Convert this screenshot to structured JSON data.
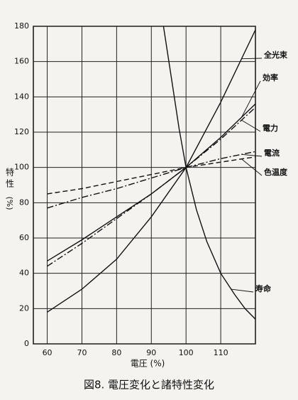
{
  "chart_data": {
    "type": "line",
    "title": "図8. 電圧変化と諸特性変化",
    "xlabel": "電圧 (%)",
    "ylabel": "特性",
    "yunit": "(%)",
    "xlim": [
      56,
      120
    ],
    "ylim": [
      0,
      180
    ],
    "xticks": [
      60,
      70,
      80,
      90,
      100,
      110
    ],
    "yticks": [
      0,
      20,
      40,
      60,
      80,
      100,
      120,
      140,
      160,
      180
    ],
    "grid": true,
    "series": [
      {
        "name": "全光束",
        "color": "#111111",
        "style": "solid",
        "x": [
          60,
          70,
          80,
          90,
          100,
          110,
          120
        ],
        "values": [
          18,
          31,
          48,
          72,
          100,
          137,
          178
        ]
      },
      {
        "name": "効率",
        "color": "#111111",
        "style": "solid",
        "x": [
          60,
          70,
          80,
          90,
          100,
          110,
          120
        ],
        "values": [
          47,
          59,
          72,
          85,
          100,
          117,
          136
        ]
      },
      {
        "name": "電力",
        "color": "#111111",
        "style": "dashdot",
        "x": [
          60,
          70,
          80,
          90,
          100,
          110,
          120
        ],
        "values": [
          44,
          57,
          71,
          85,
          100,
          116,
          134
        ]
      },
      {
        "name": "電流",
        "color": "#111111",
        "style": "dashdot",
        "x": [
          60,
          70,
          80,
          90,
          100,
          110,
          120
        ],
        "values": [
          77,
          83,
          88,
          94,
          100,
          105,
          109
        ]
      },
      {
        "name": "色温度",
        "color": "#111111",
        "style": "dashed",
        "x": [
          60,
          70,
          80,
          90,
          100,
          110,
          120
        ],
        "values": [
          85,
          88,
          92,
          96,
          100,
          103,
          106
        ]
      },
      {
        "name": "寿命",
        "color": "#111111",
        "style": "solid",
        "x": [
          93.5,
          96,
          98,
          100,
          103,
          106,
          110,
          114,
          117,
          120
        ],
        "values": [
          180,
          148,
          122,
          100,
          76,
          58,
          40,
          28,
          20,
          14
        ]
      }
    ]
  }
}
